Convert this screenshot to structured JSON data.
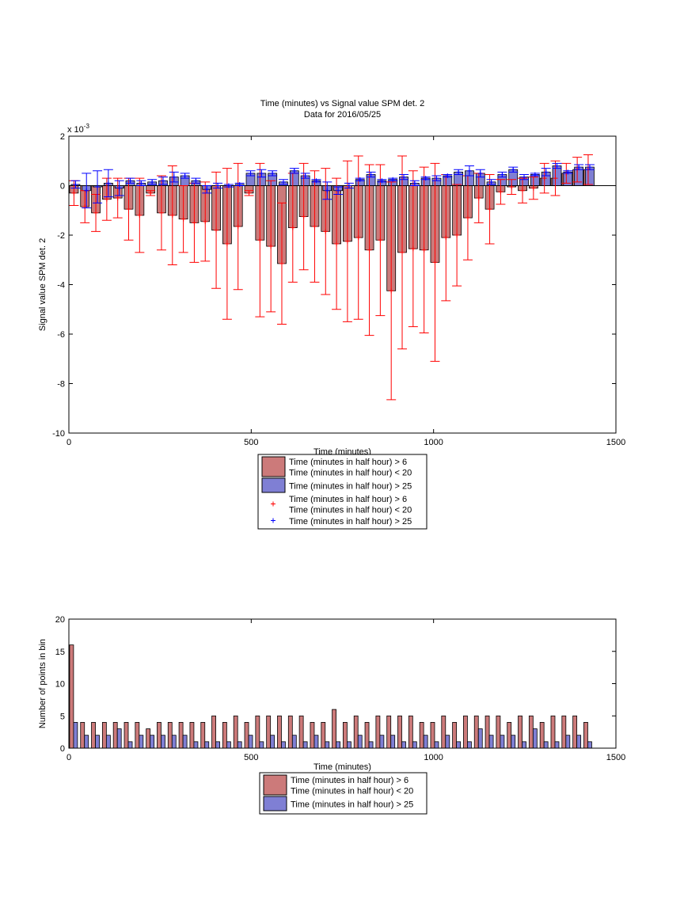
{
  "chart_data": [
    {
      "type": "bar",
      "title": "Time (minutes) vs Signal value SPM det. 2",
      "subtitle": "Data for 2016/05/25",
      "xlabel": "Time (minutes)",
      "ylabel": "Signal value SPM det. 2",
      "y_multiplier": {
        "base": "x 10",
        "exponent": "-3"
      },
      "xlim": [
        0,
        1500
      ],
      "xticks": [
        0,
        500,
        1000,
        1500
      ],
      "ylim": [
        -10,
        2
      ],
      "yticks": [
        -10,
        -8,
        -6,
        -4,
        -2,
        0,
        2
      ],
      "marker": "+",
      "x": [
        15,
        45,
        75,
        105,
        135,
        165,
        195,
        225,
        255,
        285,
        315,
        345,
        375,
        405,
        435,
        465,
        495,
        525,
        555,
        585,
        615,
        645,
        675,
        705,
        735,
        765,
        795,
        825,
        855,
        885,
        915,
        945,
        975,
        1005,
        1035,
        1065,
        1095,
        1125,
        1155,
        1185,
        1215,
        1245,
        1275,
        1305,
        1335,
        1365,
        1395,
        1425
      ],
      "series": [
        {
          "name": [
            "Time (minutes in half hour) > 6",
            "Time (minutes in half hour) < 20"
          ],
          "color": "#cc7a7a",
          "error_color": "#ff0000",
          "values": [
            -0.3,
            -0.85,
            -1.1,
            -0.55,
            -0.5,
            -0.95,
            -1.2,
            -0.3,
            -1.1,
            -1.2,
            -1.35,
            -1.5,
            -1.45,
            -1.8,
            -2.35,
            -1.65,
            -0.3,
            -2.2,
            -2.45,
            -3.15,
            -1.7,
            -1.25,
            -1.65,
            -1.85,
            -2.35,
            -2.25,
            -2.1,
            -2.6,
            -2.2,
            -4.25,
            -2.7,
            -2.55,
            -2.6,
            -3.1,
            -2.1,
            -2.0,
            -1.3,
            -0.5,
            -0.95,
            -0.25,
            -0.05,
            -0.2,
            -0.1,
            0.3,
            0.3,
            0.5,
            0.65,
            0.65
          ],
          "errors": [
            0.5,
            0.65,
            0.75,
            0.85,
            0.8,
            1.25,
            1.5,
            0.1,
            1.5,
            2.0,
            1.35,
            1.6,
            1.6,
            2.35,
            3.05,
            2.55,
            0.1,
            3.1,
            2.65,
            2.45,
            2.2,
            2.15,
            2.25,
            2.55,
            2.65,
            3.25,
            3.3,
            3.45,
            3.05,
            4.4,
            3.9,
            3.15,
            3.35,
            4.0,
            2.55,
            2.05,
            1.7,
            1.0,
            1.4,
            0.5,
            0.3,
            0.5,
            0.45,
            0.6,
            0.7,
            0.4,
            0.5,
            0.6
          ]
        },
        {
          "name": [
            "Time (minutes in half hour) > 25"
          ],
          "color": "#7f7fd4",
          "error_color": "#0000ff",
          "values": [
            0.05,
            -0.2,
            -0.05,
            0.1,
            -0.1,
            0.2,
            0.1,
            0.15,
            0.2,
            0.35,
            0.4,
            0.2,
            -0.15,
            0.0,
            0.0,
            0.05,
            0.5,
            0.5,
            0.5,
            0.15,
            0.6,
            0.4,
            0.2,
            -0.2,
            -0.2,
            0.0,
            0.25,
            0.45,
            0.2,
            0.25,
            0.35,
            0.1,
            0.3,
            0.3,
            0.4,
            0.55,
            0.6,
            0.5,
            0.15,
            0.45,
            0.65,
            0.35,
            0.45,
            0.55,
            0.8,
            0.55,
            0.75,
            0.75
          ],
          "errors": [
            0.15,
            0.7,
            0.65,
            0.55,
            0.3,
            0.1,
            0.1,
            0.1,
            0.15,
            0.2,
            0.1,
            0.1,
            0.15,
            0.1,
            0.05,
            0.05,
            0.1,
            0.15,
            0.1,
            0.1,
            0.1,
            0.1,
            0.05,
            0.35,
            0.15,
            0.1,
            0.05,
            0.1,
            0.05,
            0.05,
            0.1,
            0.1,
            0.05,
            0.1,
            0.05,
            0.1,
            0.2,
            0.15,
            0.1,
            0.1,
            0.1,
            0.1,
            0.05,
            0.15,
            0.1,
            0.05,
            0.1,
            0.1
          ]
        }
      ]
    },
    {
      "type": "bar",
      "xlabel": "Time (minutes)",
      "ylabel": "Number of points in bin",
      "xlim": [
        0,
        1500
      ],
      "xticks": [
        0,
        500,
        1000,
        1500
      ],
      "ylim": [
        0,
        20
      ],
      "yticks": [
        0,
        5,
        10,
        15,
        20
      ],
      "x": [
        15,
        45,
        75,
        105,
        135,
        165,
        195,
        225,
        255,
        285,
        315,
        345,
        375,
        405,
        435,
        465,
        495,
        525,
        555,
        585,
        615,
        645,
        675,
        705,
        735,
        765,
        795,
        825,
        855,
        885,
        915,
        945,
        975,
        1005,
        1035,
        1065,
        1095,
        1125,
        1155,
        1185,
        1215,
        1245,
        1275,
        1305,
        1335,
        1365,
        1395,
        1425
      ],
      "series": [
        {
          "name": [
            "Time (minutes in half hour) > 6",
            "Time (minutes in half hour) < 20"
          ],
          "color": "#cc7a7a",
          "values": [
            16,
            4,
            4,
            4,
            4,
            4,
            4,
            3,
            4,
            4,
            4,
            4,
            4,
            5,
            4,
            5,
            4,
            5,
            5,
            5,
            5,
            5,
            4,
            4,
            6,
            4,
            5,
            4,
            5,
            5,
            5,
            5,
            4,
            4,
            5,
            4,
            5,
            5,
            5,
            5,
            4,
            5,
            5,
            4,
            5,
            5,
            5,
            4
          ]
        },
        {
          "name": [
            "Time (minutes in half hour) > 25"
          ],
          "color": "#7f7fd4",
          "values": [
            4,
            2,
            2,
            2,
            3,
            1,
            2,
            2,
            2,
            2,
            2,
            1,
            1,
            1,
            1,
            1,
            2,
            1,
            2,
            1,
            2,
            1,
            2,
            1,
            1,
            1,
            2,
            1,
            2,
            2,
            1,
            1,
            2,
            1,
            2,
            1,
            1,
            3,
            2,
            2,
            2,
            1,
            3,
            1,
            1,
            2,
            2,
            1
          ]
        }
      ]
    }
  ]
}
